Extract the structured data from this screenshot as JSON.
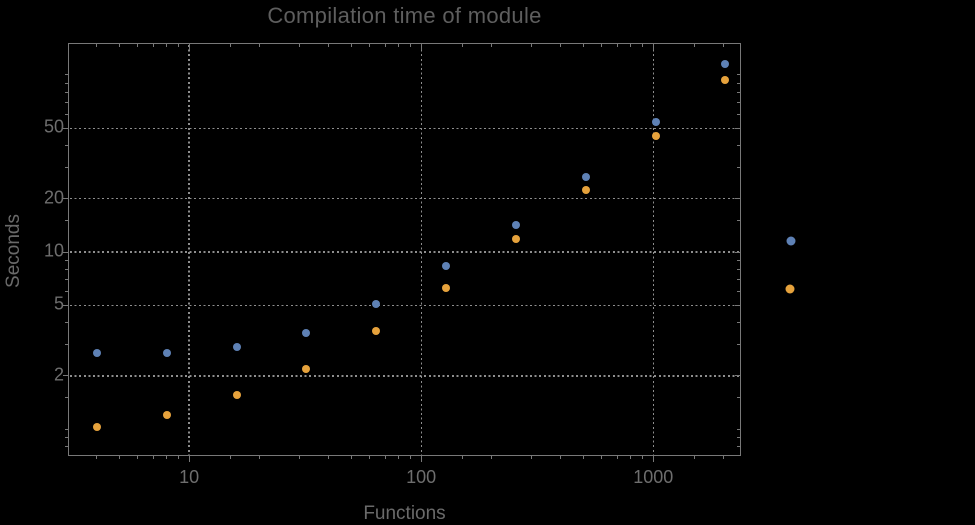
{
  "title": "Compilation time of module",
  "colors": {
    "background": "#000000",
    "title_text": "#5E5E5E",
    "axis_label_text": "#6A6A6A",
    "tick_label_text": "#6E6E6E",
    "frame": "#787878",
    "gridline": "#8E8E8E",
    "series_blue": "#5E81B5",
    "series_orange": "#E6A23C"
  },
  "chart_data": {
    "type": "scatter",
    "title": "Compilation time of module",
    "xlabel": "Functions",
    "ylabel": "Seconds",
    "x_scale": "log",
    "y_scale": "log",
    "xlim": [
      3.02,
      2377
    ],
    "ylim": [
      0.71,
      150.5
    ],
    "grid": "dotted gray lines at major ticks only",
    "legend": {
      "position": "outside-right",
      "labels_visible": false,
      "markers": [
        "blue-dot",
        "orange-dot"
      ]
    },
    "x_ticks": {
      "major": [
        10,
        100,
        1000
      ],
      "major_labels": [
        "10",
        "100",
        "1000"
      ],
      "minor": [
        4,
        5,
        6,
        7,
        8,
        9,
        15,
        20,
        30,
        40,
        50,
        60,
        70,
        80,
        90,
        150,
        200,
        300,
        400,
        500,
        600,
        700,
        800,
        900,
        1500,
        2000
      ]
    },
    "y_ticks": {
      "major": [
        2,
        5,
        10,
        20,
        50
      ],
      "major_labels": [
        "2",
        "5",
        "10",
        "20",
        "50"
      ],
      "minor": [
        0.8,
        0.9,
        1,
        1.5,
        3,
        4,
        6,
        7,
        8,
        9,
        15,
        30,
        40,
        60,
        70,
        80,
        90,
        100
      ]
    },
    "x": [
      4,
      8,
      16,
      32,
      64,
      128,
      256,
      512,
      1024,
      2048
    ],
    "series": [
      {
        "name": "series-1-blue",
        "color": "#5E81B5",
        "values": [
          2.7,
          2.7,
          2.9,
          3.5,
          5.1,
          8.3,
          14.3,
          26.5,
          54,
          115
        ]
      },
      {
        "name": "series-2-orange",
        "color": "#E6A23C",
        "values": [
          1.03,
          1.2,
          1.55,
          2.2,
          3.6,
          6.3,
          11.8,
          22.5,
          45,
          94
        ]
      }
    ]
  }
}
